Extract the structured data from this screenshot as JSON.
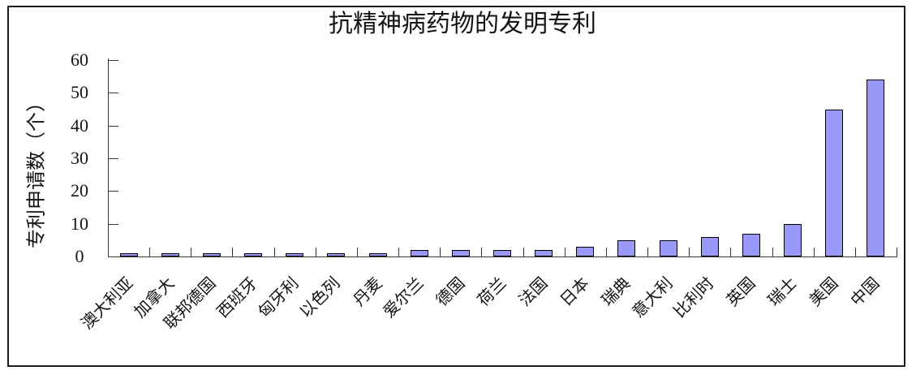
{
  "window": {
    "background": "#ffffff",
    "frame_border_color": "#1c1c1c"
  },
  "chart_data": {
    "type": "bar",
    "title": "抗精神病药物的发明专利",
    "ylabel": "专利申请数（个）",
    "xlabel": "",
    "categories": [
      "澳大利亚",
      "加拿大",
      "联邦德国",
      "西班牙",
      "匈牙利",
      "以色列",
      "丹麦",
      "爱尔兰",
      "德国",
      "荷兰",
      "法国",
      "日本",
      "瑞典",
      "意大利",
      "比利时",
      "英国",
      "瑞士",
      "美国",
      "中国"
    ],
    "values": [
      1,
      1,
      1,
      1,
      1,
      1,
      1,
      2,
      2,
      2,
      2,
      3,
      5,
      5,
      6,
      7,
      10,
      45,
      54
    ],
    "ylim": [
      0,
      60
    ],
    "yticks": [
      0,
      10,
      20,
      30,
      40,
      50,
      60
    ],
    "x_label_rotation_deg": 45,
    "grid": false,
    "legend": "none",
    "bar_fill_color": "#9999FA",
    "bar_border_color": "#000000",
    "axis_color": "#3a3a3a",
    "text_color": "#141414"
  }
}
